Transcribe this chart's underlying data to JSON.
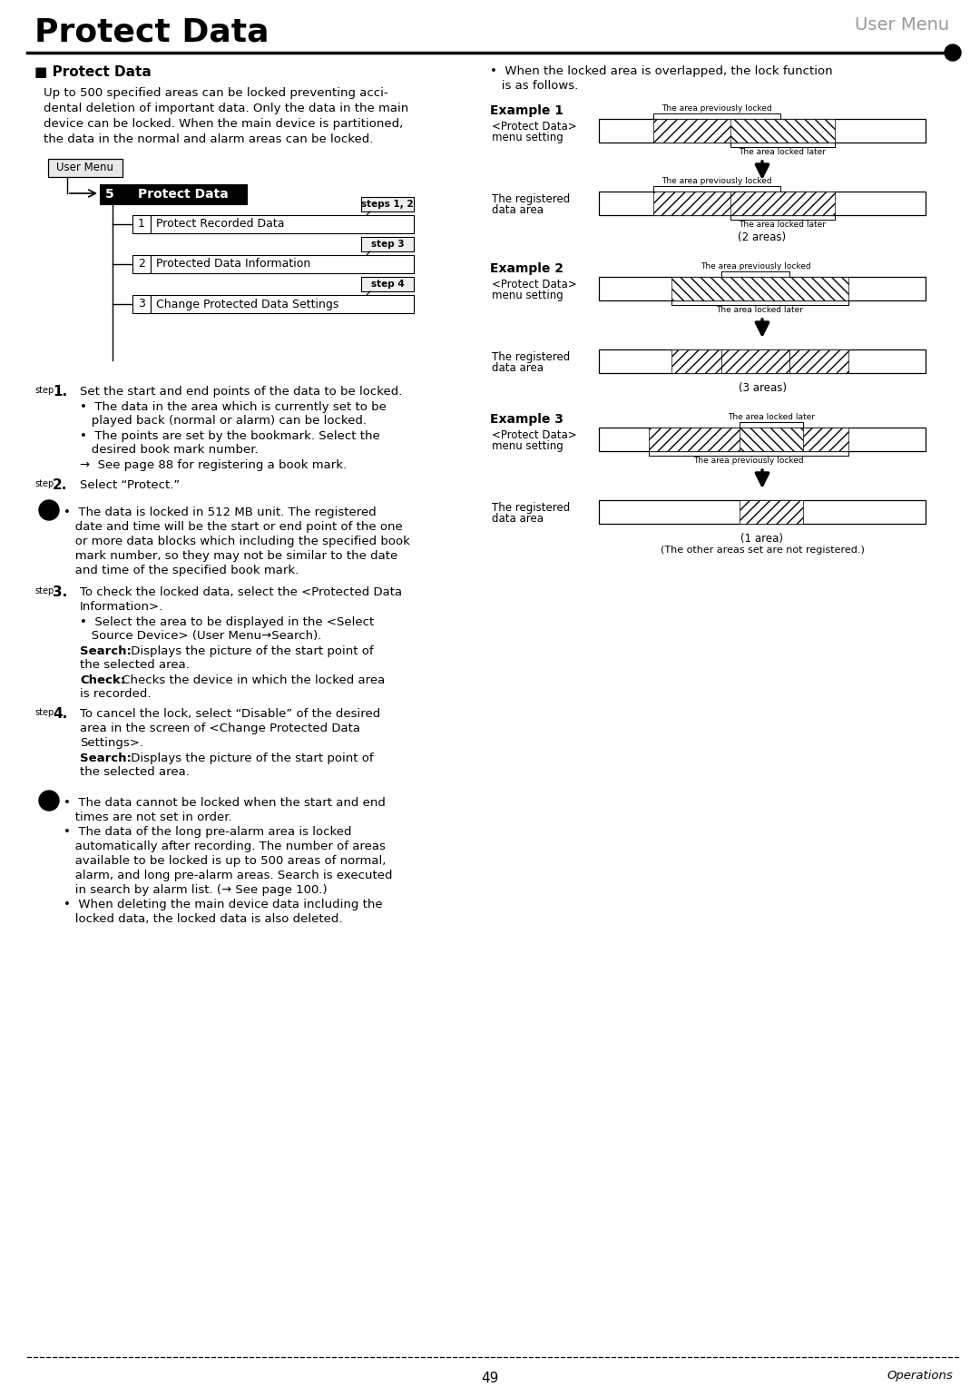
{
  "title": "Protect Data",
  "subtitle": "User Menu",
  "bg_color": "#ffffff",
  "page_number": "49",
  "footer_text": "Operations",
  "section_title": "■ Protect Data",
  "intro_lines": [
    "Up to 500 specified areas can be locked preventing acci-",
    "dental deletion of important data. Only the data in the main",
    "device can be locked. When the main device is partitioned,",
    "the data in the normal and alarm areas can be locked."
  ],
  "menu_user_menu": "User Menu",
  "menu_item5_num": "5",
  "menu_item5_text": "Protect Data",
  "menu_item1_num": "1",
  "menu_item1_text": "Protect Recorded Data",
  "menu_item1_step": "steps 1, 2",
  "menu_item2_num": "2",
  "menu_item2_text": "Protected Data Information",
  "menu_item2_step": "step 3",
  "menu_item3_num": "3",
  "menu_item3_text": "Change Protected Data Settings",
  "menu_item3_step": "step 4",
  "bullet_right_intro": [
    "•  When the locked area is overlapped, the lock function",
    "   is as follows."
  ],
  "ex1_title": "Example 1",
  "ex1_label1a": "<Protect Data>",
  "ex1_label1b": "menu setting",
  "ex1_label2a": "The registered",
  "ex1_label2b": "data area",
  "ex1_prev_label": "The area previously locked",
  "ex1_later_label": "The area locked later",
  "ex1_res_prev_label": "The area previously locked",
  "ex1_res_later_label": "The area locked later",
  "ex1_areas": "(2 areas)",
  "ex2_title": "Example 2",
  "ex2_label1a": "<Protect Data>",
  "ex2_label1b": "menu setting",
  "ex2_label2a": "The registered",
  "ex2_label2b": "data area",
  "ex2_prev_label": "The area previously locked",
  "ex2_later_label": "The area locked later",
  "ex2_areas": "(3 areas)",
  "ex3_title": "Example 3",
  "ex3_label1a": "<Protect Data>",
  "ex3_label1b": "menu setting",
  "ex3_label2a": "The registered",
  "ex3_label2b": "data area",
  "ex3_later_label": "The area locked later",
  "ex3_prev_label": "The area previously locked",
  "ex3_areas": "(1 area)",
  "ex3_note": "(The other areas set are not registered.)",
  "step1_intro": "Set the start and end points of the data to be locked.",
  "step1_b1a": "•  The data in the area which is currently set to be",
  "step1_b1b": "   played back (normal or alarm) can be locked.",
  "step1_b2a": "•  The points are set by the bookmark. Select the",
  "step1_b2b": "   desired book mark number.",
  "step1_ref": "→  See page 88 for registering a book mark.",
  "step2_intro": "Select “Protect.”",
  "note1_lines": [
    "•  The data is locked in 512 MB unit. The registered",
    "   date and time will be the start or end point of the one",
    "   or more data blocks which including the specified book",
    "   mark number, so they may not be similar to the date",
    "   and time of the specified book mark."
  ],
  "step3_a": "To check the locked data, select the <Protected Data",
  "step3_b": "Information>.",
  "step3_b1a": "•  Select the area to be displayed in the <Select",
  "step3_b1b": "   Source Device> (User Menu→Search).",
  "step3_b2a": "Search:  Displays the picture of the start point of",
  "step3_b2b": "the selected area.",
  "step3_b3a": "Check:  Checks the device in which the locked area",
  "step3_b3b": "is recorded.",
  "step4_a": "To cancel the lock, select “Disable” of the desired",
  "step4_b": "area in the screen of <Change Protected Data",
  "step4_c": "Settings>.",
  "step4_b1a": "Search:  Displays the picture of the start point of",
  "step4_b1b": "the selected area.",
  "note2_lines": [
    "•  The data cannot be locked when the start and end",
    "   times are not set in order.",
    "•  The data of the long pre-alarm area is locked",
    "   automatically after recording. The number of areas",
    "   available to be locked is up to 500 areas of normal,",
    "   alarm, and long pre-alarm areas. Search is executed",
    "   in search by alarm list. (→ See page 100.)",
    "•  When deleting the main device data including the",
    "   locked data, the locked data is also deleted."
  ]
}
